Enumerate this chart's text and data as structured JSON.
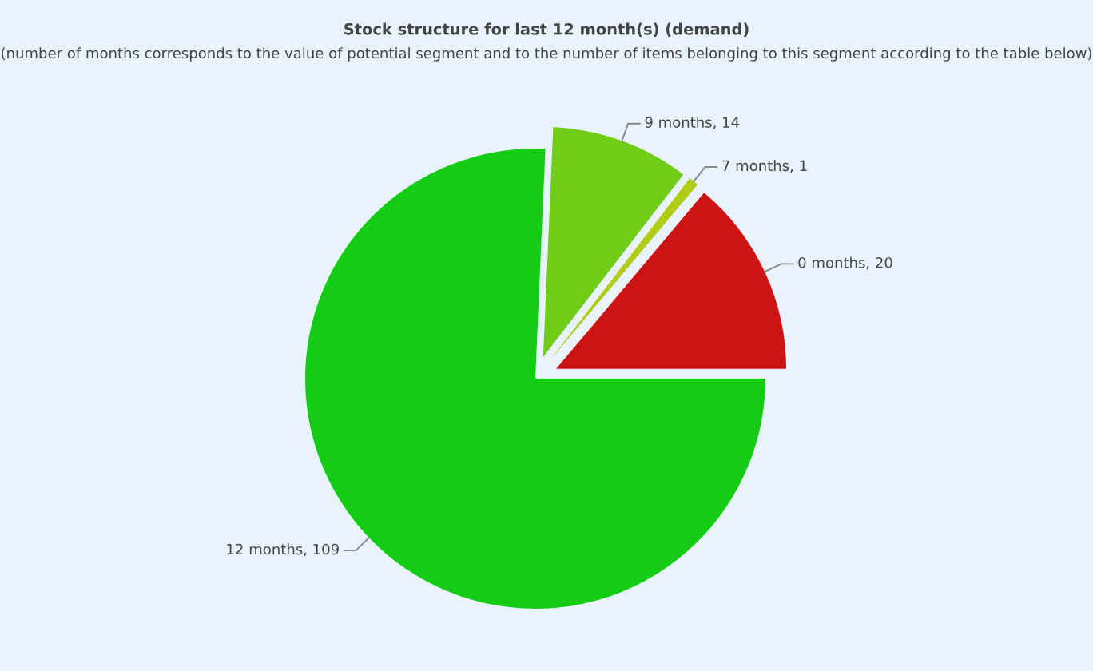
{
  "chart_data": {
    "type": "pie",
    "title": "Stock structure for last 12 month(s) (demand)",
    "subtitle": "(number of months corresponds to the value of potential segment and to the number of items belonging to this segment according to the table below)",
    "categories": [
      "0 months",
      "7 months",
      "9 months",
      "12 months"
    ],
    "values": [
      20,
      1,
      14,
      109
    ],
    "colors": [
      "#cc1414",
      "#b0cc14",
      "#6fcc17",
      "#14cc14"
    ],
    "value_labels": [
      ", 20",
      ", 1",
      ", 14",
      ", 109"
    ]
  }
}
